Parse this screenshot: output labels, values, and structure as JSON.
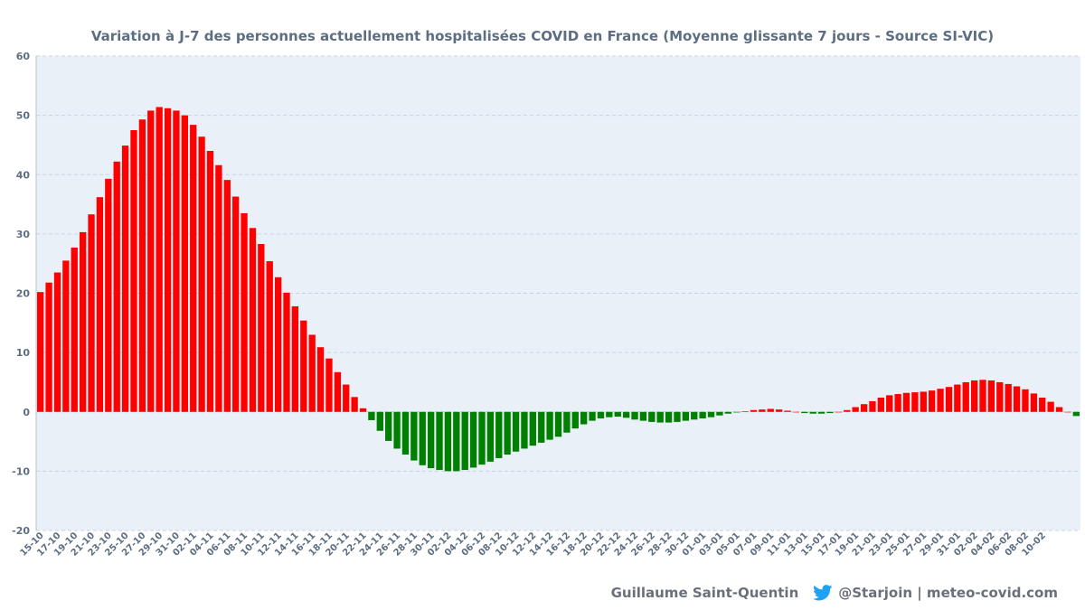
{
  "chart_data": {
    "type": "bar",
    "title": "Variation à J-7  des personnes actuellement hospitalisées COVID en France (Moyenne glissante 7 jours - Source SI-VIC)",
    "xlabel": "",
    "ylabel": "",
    "ylim": [
      -20,
      60
    ],
    "yticks": [
      60,
      50,
      40,
      30,
      20,
      10,
      0,
      -10,
      -20
    ],
    "grid": true,
    "colors": {
      "positive": "#ff0000",
      "negative": "#008000",
      "plot_background": "#eaf0f8",
      "grid": "#c9d3e0",
      "text": "#5d6d82"
    },
    "x_tick_labels": [
      "15-10",
      "17-10",
      "19-10",
      "21-10",
      "23-10",
      "25-10",
      "27-10",
      "29-10",
      "31-10",
      "02-11",
      "04-11",
      "06-11",
      "08-11",
      "10-11",
      "12-11",
      "14-11",
      "16-11",
      "18-11",
      "20-11",
      "22-11",
      "24-11",
      "26-11",
      "28-11",
      "30-11",
      "02-12",
      "04-12",
      "06-12",
      "08-12",
      "10-12",
      "12-12",
      "14-12",
      "16-12",
      "18-12",
      "20-12",
      "22-12",
      "24-12",
      "26-12",
      "28-12",
      "30-12",
      "01-01",
      "03-01",
      "05-01",
      "07-01",
      "09-01",
      "11-01",
      "13-01",
      "15-01",
      "17-01",
      "19-01",
      "21-01",
      "23-01",
      "25-01",
      "27-01",
      "29-01",
      "31-01",
      "02-02",
      "04-02",
      "06-02",
      "08-02",
      "10-02"
    ],
    "values": [
      20.2,
      21.8,
      23.5,
      25.5,
      27.7,
      30.3,
      33.3,
      36.2,
      39.3,
      42.2,
      44.9,
      47.5,
      49.3,
      50.8,
      51.4,
      51.2,
      50.8,
      50.0,
      48.4,
      46.4,
      44.0,
      41.6,
      39.1,
      36.3,
      33.5,
      31.0,
      28.3,
      25.4,
      22.7,
      20.1,
      17.8,
      15.4,
      13.0,
      10.9,
      9.0,
      6.7,
      4.6,
      2.5,
      0.6,
      -1.4,
      -3.2,
      -4.9,
      -6.2,
      -7.2,
      -8.2,
      -9.0,
      -9.5,
      -9.8,
      -10.0,
      -10.0,
      -9.8,
      -9.4,
      -8.9,
      -8.4,
      -7.8,
      -7.2,
      -6.7,
      -6.2,
      -5.7,
      -5.2,
      -4.7,
      -4.2,
      -3.5,
      -2.8,
      -2.1,
      -1.5,
      -1.1,
      -0.9,
      -0.8,
      -1.0,
      -1.3,
      -1.5,
      -1.7,
      -1.8,
      -1.8,
      -1.7,
      -1.5,
      -1.3,
      -1.1,
      -0.9,
      -0.6,
      -0.3,
      -0.1,
      0.1,
      0.3,
      0.4,
      0.5,
      0.4,
      0.2,
      0.0,
      -0.2,
      -0.3,
      -0.3,
      -0.2,
      0.0,
      0.3,
      0.8,
      1.3,
      1.8,
      2.4,
      2.8,
      3.0,
      3.2,
      3.3,
      3.4,
      3.6,
      3.9,
      4.2,
      4.6,
      5.0,
      5.3,
      5.4,
      5.3,
      5.0,
      4.7,
      4.3,
      3.8,
      3.1,
      2.4,
      1.7,
      0.8,
      0.0,
      -0.7
    ]
  },
  "footer": {
    "author": "Guillaume Saint-Quentin",
    "icon": "twitter-icon",
    "handle": "@Starjoin | meteo-covid.com"
  }
}
